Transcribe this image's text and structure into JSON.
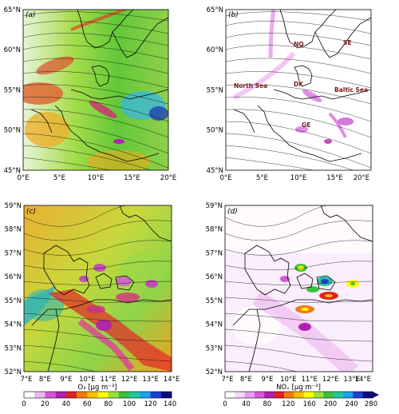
{
  "panels": [
    {
      "id": "a",
      "label": "(a)",
      "xticks": [
        "0°E",
        "5°E",
        "10°E",
        "15°E",
        "20°E"
      ],
      "yticks": [
        "65°N",
        "60°N",
        "55°N",
        "50°N",
        "45°N"
      ],
      "field": "O3"
    },
    {
      "id": "b",
      "label": "(b)",
      "xticks": [
        "0°E",
        "5°E",
        "10°E",
        "15°E",
        "20°E"
      ],
      "yticks": [
        "65°N",
        "60°N",
        "55°N",
        "50°N",
        "45°N"
      ],
      "field": "NOx",
      "places": [
        "NO",
        "SE",
        "North Sea",
        "DK",
        "Baltic Sea",
        "GE"
      ]
    },
    {
      "id": "c",
      "label": "(c)",
      "xticks": [
        "7°E",
        "8°E",
        "9°E",
        "10°E",
        "11°E",
        "12°E",
        "13°E",
        "14°E"
      ],
      "yticks": [
        "59°N",
        "58°N",
        "57°N",
        "56°N",
        "55°N",
        "54°N",
        "53°N",
        "52°N"
      ],
      "field": "O3"
    },
    {
      "id": "d",
      "label": "(d)",
      "xticks": [
        "7°E",
        "8°E",
        "9°E",
        "10°E",
        "11°E",
        "12°E",
        "13°E",
        "14°E"
      ],
      "yticks": [
        "59°N",
        "58°N",
        "57°N",
        "56°N",
        "55°N",
        "54°N",
        "53°N",
        "52°N"
      ],
      "field": "NOx"
    }
  ],
  "colorbars": [
    {
      "id": "o3",
      "ticks": [
        "0",
        "20",
        "40",
        "60",
        "80",
        "100",
        "120",
        "140"
      ],
      "label": "O₃  [μg m⁻³]",
      "colors": [
        "#ffffff",
        "#e9b7ef",
        "#d658d4",
        "#b020b0",
        "#e22020",
        "#ef7a10",
        "#f4c000",
        "#ffff00",
        "#9be03a",
        "#3cc040",
        "#26c5a0",
        "#20a0f0",
        "#2040d0",
        "#0a0a80"
      ]
    },
    {
      "id": "nox",
      "ticks": [
        "0",
        "40",
        "80",
        "120",
        "160",
        "200",
        "240",
        "280"
      ],
      "label": "NOₓ  [μg m⁻³]",
      "colors": [
        "#ffffff",
        "#f7d7fb",
        "#e89bf0",
        "#d35ad8",
        "#b020b0",
        "#e22020",
        "#ef7a10",
        "#f4c000",
        "#ffff00",
        "#9be03a",
        "#3cc040",
        "#26c5a0",
        "#20a0f0",
        "#2040d0",
        "#0a0a80"
      ]
    }
  ]
}
